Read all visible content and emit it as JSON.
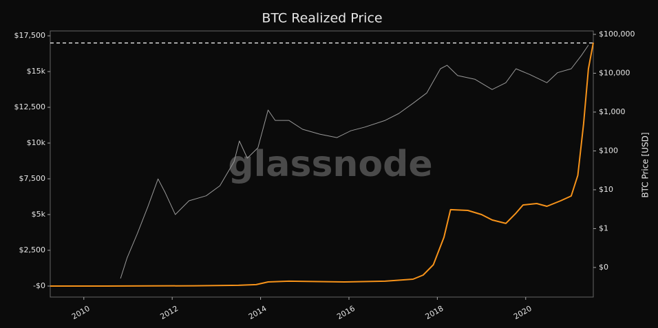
{
  "chart_data": {
    "type": "line",
    "title": "BTC Realized Price",
    "y2_label": "BTC Price [USD]",
    "watermark": "glassnode",
    "xlim": [
      2009.24,
      2021.53
    ],
    "xticks": [
      2010,
      2012,
      2014,
      2016,
      2018,
      2020
    ],
    "ylim": [
      -770,
      17840
    ],
    "yticks": [
      {
        "value": 0,
        "label": "-$0"
      },
      {
        "value": 2500,
        "label": "$2,500"
      },
      {
        "value": 5000,
        "label": "$5k"
      },
      {
        "value": 7500,
        "label": "$7,500"
      },
      {
        "value": 10000,
        "label": "$10k"
      },
      {
        "value": 12500,
        "label": "$12,500"
      },
      {
        "value": 15000,
        "label": "$15k"
      },
      {
        "value": 17500,
        "label": "$17,500"
      }
    ],
    "y2lim": [
      0.0173,
      122500
    ],
    "y2_log": true,
    "y2ticks": [
      {
        "value": 0.1,
        "label": "$0"
      },
      {
        "value": 1,
        "label": "$1"
      },
      {
        "value": 10,
        "label": "$10"
      },
      {
        "value": 100,
        "label": "$100"
      },
      {
        "value": 1000,
        "label": "$1,000"
      },
      {
        "value": 10000,
        "label": "$10,000"
      },
      {
        "value": 100000,
        "label": "$100,000"
      }
    ],
    "hline": 17000,
    "series": [
      {
        "color": "#f7931a",
        "axis": "y",
        "x": [
          2009.24,
          2010.5,
          2011.5,
          2012.5,
          2013.5,
          2013.9,
          2014.17,
          2014.64,
          2015.89,
          2016.82,
          2017.45,
          2017.68,
          2017.91,
          2018.15,
          2018.3,
          2018.69,
          2019.0,
          2019.24,
          2019.55,
          2019.78,
          2019.94,
          2020.25,
          2020.48,
          2020.79,
          2021.03,
          2021.18,
          2021.31,
          2021.42,
          2021.53
        ],
        "values": [
          0,
          0,
          10,
          20,
          50,
          100,
          290,
          340,
          290,
          340,
          480,
          770,
          1490,
          3410,
          5340,
          5290,
          5000,
          4620,
          4380,
          5100,
          5670,
          5770,
          5580,
          5960,
          6300,
          7740,
          11350,
          15190,
          17020
        ]
      },
      {
        "color": "#9a9a9a",
        "axis": "y2",
        "x": [
          2010.83,
          2010.98,
          2011.21,
          2011.45,
          2011.68,
          2011.84,
          2012.07,
          2012.38,
          2012.77,
          2013.08,
          2013.4,
          2013.52,
          2013.7,
          2013.94,
          2014.17,
          2014.33,
          2014.64,
          2014.95,
          2015.34,
          2015.73,
          2016.04,
          2016.36,
          2016.82,
          2017.13,
          2017.45,
          2017.76,
          2018.07,
          2018.22,
          2018.46,
          2018.85,
          2019.24,
          2019.55,
          2019.78,
          2020.09,
          2020.48,
          2020.72,
          2021.03,
          2021.26,
          2021.42
        ],
        "values": [
          0.052,
          0.177,
          0.74,
          3.7,
          19,
          8.5,
          2.3,
          5.2,
          7,
          12.7,
          53,
          180,
          65,
          120,
          1130,
          610,
          610,
          360,
          270,
          220,
          330,
          410,
          610,
          920,
          1680,
          3100,
          13000,
          16000,
          8700,
          7000,
          3800,
          5700,
          13000,
          9300,
          5700,
          10300,
          13000,
          28600,
          53000
        ]
      }
    ]
  }
}
